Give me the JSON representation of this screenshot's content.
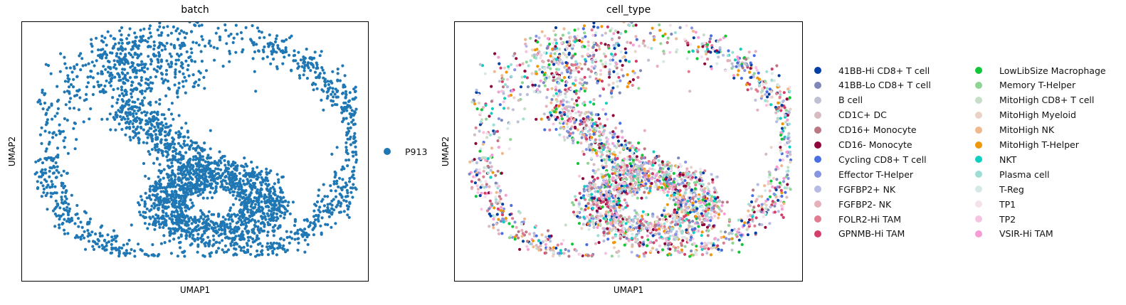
{
  "chart_data": [
    {
      "type": "scatter",
      "title": "batch",
      "xlabel": "UMAP1",
      "ylabel": "UMAP2",
      "grid": false,
      "legend_placement": "right",
      "series": [
        {
          "name": "P913",
          "color": "#1f77b4"
        }
      ]
    },
    {
      "type": "scatter",
      "title": "cell_type",
      "xlabel": "UMAP1",
      "ylabel": "UMAP2",
      "grid": false,
      "legend_placement": "right",
      "series": [
        {
          "name": "41BB-Hi CD8+ T cell",
          "color": "#023fa5"
        },
        {
          "name": "41BB-Lo CD8+ T cell",
          "color": "#7d87b9"
        },
        {
          "name": "B cell",
          "color": "#bec1d4"
        },
        {
          "name": "CD1C+ DC",
          "color": "#d6bcc0"
        },
        {
          "name": "CD16+ Monocyte",
          "color": "#bb7784"
        },
        {
          "name": "CD16- Monocyte",
          "color": "#8e063b"
        },
        {
          "name": "Cycling CD8+ T cell",
          "color": "#4a6fe3"
        },
        {
          "name": "Effector T-Helper",
          "color": "#8595e1"
        },
        {
          "name": "FGFBP2+ NK",
          "color": "#b5bbe3"
        },
        {
          "name": "FGFBP2- NK",
          "color": "#e6afb9"
        },
        {
          "name": "FOLR2-Hi TAM",
          "color": "#e07b91"
        },
        {
          "name": "GPNMB-Hi TAM",
          "color": "#d33f6a"
        },
        {
          "name": "LowLibSize Macrophage",
          "color": "#11c638"
        },
        {
          "name": "Memory T-Helper",
          "color": "#8dd593"
        },
        {
          "name": "MitoHigh CD8+ T cell",
          "color": "#c6dec7"
        },
        {
          "name": "MitoHigh Myeloid",
          "color": "#ead3c6"
        },
        {
          "name": "MitoHigh NK",
          "color": "#f0b98d"
        },
        {
          "name": "MitoHigh T-Helper",
          "color": "#ef9708"
        },
        {
          "name": "NKT",
          "color": "#0fcfc0"
        },
        {
          "name": "Plasma cell",
          "color": "#9cded6"
        },
        {
          "name": "T-Reg",
          "color": "#d5eae7"
        },
        {
          "name": "TP1",
          "color": "#f3e1eb"
        },
        {
          "name": "TP2",
          "color": "#f6c4e1"
        },
        {
          "name": "VSIR-Hi TAM",
          "color": "#f79cd4"
        }
      ]
    }
  ]
}
